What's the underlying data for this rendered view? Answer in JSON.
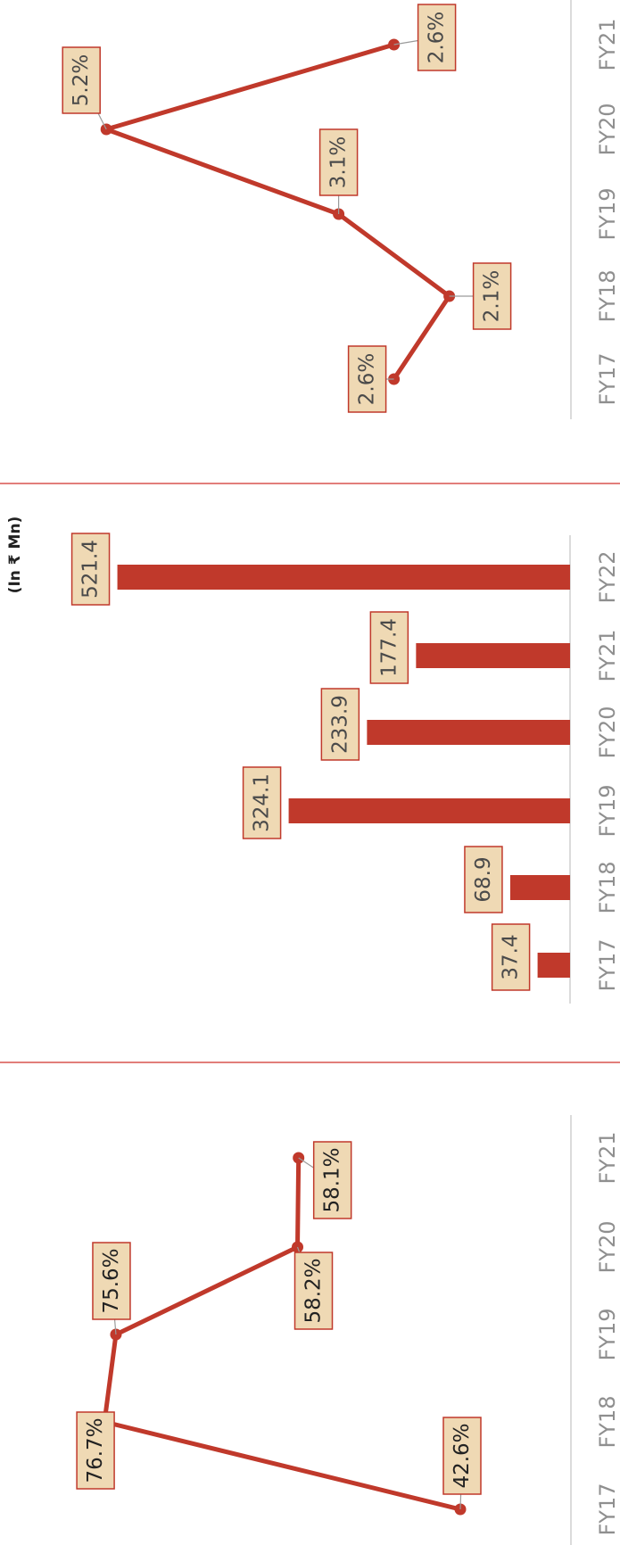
{
  "style": {
    "accent": "#c0392b",
    "label_fill": "#efd9b4",
    "label_border": "#c0392b",
    "axis_color": "#cfcfcf",
    "divider_color": "#d9534f"
  },
  "chart_data": [
    {
      "type": "line",
      "title": "",
      "categories": [
        "FY17",
        "FY18",
        "FY19",
        "FY20",
        "FY21"
      ],
      "values": [
        2.6,
        2.1,
        3.1,
        5.2,
        2.6
      ],
      "labels": [
        "2.6%",
        "2.1%",
        "3.1%",
        "5.2%",
        "2.6%"
      ],
      "ylim": [
        1.0,
        6.0
      ]
    },
    {
      "type": "bar",
      "title": "",
      "unit_label": "(In ₹ Mn)",
      "categories": [
        "FY17",
        "FY18",
        "FY19",
        "FY20",
        "FY21",
        "FY22"
      ],
      "values": [
        37.4,
        68.9,
        324.1,
        233.9,
        177.4,
        521.4
      ],
      "labels": [
        "37.4",
        "68.9",
        "324.1",
        "233.9",
        "177.4",
        "521.4"
      ],
      "ylim": [
        0,
        560
      ]
    },
    {
      "type": "line",
      "title": "",
      "categories": [
        "FY17",
        "FY18",
        "FY19",
        "FY20",
        "FY21"
      ],
      "values": [
        42.6,
        76.7,
        75.6,
        58.2,
        58.1
      ],
      "labels": [
        "42.6%",
        "76.7%",
        "75.6%",
        "58.2%",
        "58.1%"
      ],
      "ylim": [
        32,
        85
      ]
    }
  ]
}
